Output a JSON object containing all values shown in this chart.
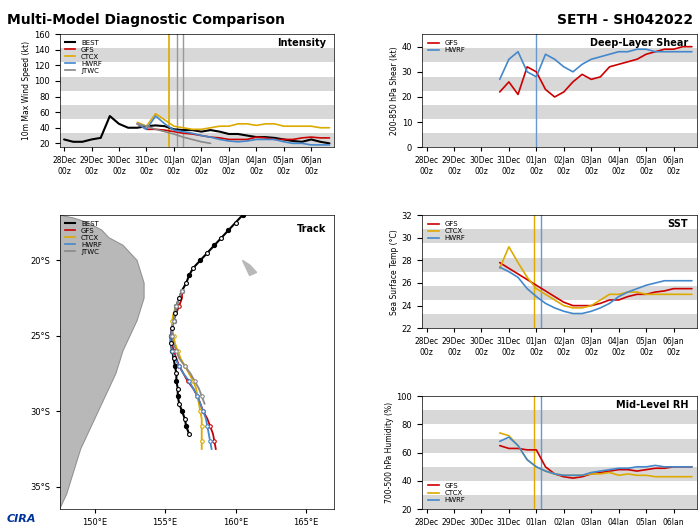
{
  "title_left": "Multi-Model Diagnostic Comparison",
  "title_right": "SETH - SH042022",
  "x_labels": [
    "28Dec\n00z",
    "29Dec\n00z",
    "30Dec\n00z",
    "31Dec\n00z",
    "01Jan\n00z",
    "02Jan\n00z",
    "03Jan\n00z",
    "04Jan\n00z",
    "05Jan\n00z",
    "06Jan\n00z"
  ],
  "intensity": {
    "label": "Intensity",
    "ylabel": "10m Max Wind Speed (kt)",
    "ylim": [
      15,
      160
    ],
    "yticks": [
      20,
      40,
      60,
      80,
      100,
      120,
      140,
      160
    ],
    "best": [
      25,
      22,
      22,
      25,
      27,
      55,
      45,
      40,
      40,
      42,
      43,
      42,
      38,
      37,
      37,
      35,
      37,
      35,
      32,
      32,
      30,
      28,
      28,
      27,
      25,
      23,
      22,
      25,
      22,
      20
    ],
    "gfs": [
      null,
      null,
      null,
      null,
      null,
      null,
      null,
      null,
      45,
      38,
      38,
      37,
      35,
      33,
      32,
      30,
      28,
      27,
      25,
      25,
      25,
      28,
      27,
      25,
      25,
      25,
      27,
      28,
      27,
      27
    ],
    "ctcx": [
      null,
      null,
      null,
      null,
      null,
      null,
      null,
      null,
      47,
      42,
      58,
      50,
      42,
      40,
      38,
      38,
      40,
      42,
      42,
      45,
      45,
      43,
      45,
      45,
      42,
      42,
      42,
      42,
      40,
      40
    ],
    "hwrf": [
      null,
      null,
      null,
      null,
      null,
      null,
      null,
      null,
      45,
      38,
      55,
      45,
      37,
      35,
      33,
      30,
      28,
      25,
      23,
      22,
      23,
      25,
      25,
      25,
      22,
      20,
      20,
      18,
      18,
      18
    ],
    "jtwc": [
      null,
      null,
      null,
      null,
      null,
      null,
      null,
      null,
      45,
      42,
      38,
      35,
      32,
      28,
      25,
      22,
      20,
      null,
      null,
      null,
      null,
      null,
      null,
      null,
      null,
      null,
      null,
      null,
      null,
      null
    ],
    "vline_ctcx_idx": 4,
    "vline_jtwc_idx": 4
  },
  "shear": {
    "label": "Deep-Layer Shear",
    "ylabel": "200-850 hPa Shear (kt)",
    "ylim": [
      0,
      45
    ],
    "yticks": [
      0,
      10,
      20,
      30,
      40
    ],
    "gfs": [
      null,
      null,
      null,
      null,
      null,
      null,
      null,
      null,
      22,
      26,
      21,
      32,
      30,
      23,
      20,
      22,
      26,
      29,
      27,
      28,
      32,
      33,
      34,
      35,
      37,
      38,
      39,
      39,
      40,
      40
    ],
    "hwrf": [
      null,
      null,
      null,
      null,
      null,
      null,
      null,
      null,
      27,
      35,
      38,
      30,
      28,
      37,
      35,
      32,
      30,
      33,
      35,
      36,
      37,
      38,
      38,
      39,
      39,
      38,
      38,
      38,
      38,
      38
    ],
    "vline_idx": 4
  },
  "sst": {
    "label": "SST",
    "ylabel": "Sea Surface Temp (°C)",
    "ylim": [
      22,
      32
    ],
    "yticks": [
      22,
      24,
      26,
      28,
      30,
      32
    ],
    "gfs": [
      null,
      null,
      null,
      null,
      null,
      null,
      null,
      null,
      27.8,
      27.3,
      26.8,
      26.3,
      25.8,
      25.3,
      24.8,
      24.3,
      24.0,
      24.0,
      24.0,
      24.2,
      24.5,
      24.5,
      24.8,
      25.0,
      25.0,
      25.2,
      25.3,
      25.5,
      25.5,
      25.5
    ],
    "ctcx": [
      null,
      null,
      null,
      null,
      null,
      null,
      null,
      null,
      27.3,
      29.2,
      27.8,
      26.5,
      25.5,
      25.0,
      24.5,
      24.0,
      23.8,
      23.8,
      24.0,
      24.5,
      25.0,
      25.0,
      25.2,
      25.2,
      25.0,
      25.0,
      25.0,
      25.0,
      25.0,
      25.0
    ],
    "hwrf": [
      null,
      null,
      null,
      null,
      null,
      null,
      null,
      null,
      27.4,
      27.0,
      26.5,
      25.5,
      24.8,
      24.2,
      23.8,
      23.5,
      23.3,
      23.3,
      23.5,
      23.8,
      24.2,
      24.8,
      25.2,
      25.5,
      25.8,
      26.0,
      26.2,
      26.2,
      26.2,
      26.2
    ],
    "vline_ctcx_idx": 4,
    "vline_blue_idx": 4
  },
  "rh": {
    "label": "Mid-Level RH",
    "ylabel": "700-500 hPa Humidity (%)",
    "ylim": [
      20,
      100
    ],
    "yticks": [
      20,
      40,
      60,
      80,
      100
    ],
    "gfs": [
      null,
      null,
      null,
      null,
      null,
      null,
      null,
      null,
      65,
      63,
      63,
      62,
      62,
      50,
      45,
      43,
      42,
      43,
      45,
      46,
      47,
      48,
      48,
      47,
      48,
      49,
      49,
      50,
      50,
      50
    ],
    "ctcx": [
      null,
      null,
      null,
      null,
      null,
      null,
      null,
      null,
      74,
      72,
      65,
      55,
      50,
      47,
      45,
      44,
      44,
      44,
      45,
      45,
      46,
      44,
      45,
      44,
      44,
      43,
      43,
      43,
      43,
      43
    ],
    "hwrf": [
      null,
      null,
      null,
      null,
      null,
      null,
      null,
      null,
      68,
      71,
      65,
      55,
      50,
      47,
      45,
      44,
      44,
      44,
      46,
      47,
      48,
      49,
      49,
      50,
      50,
      51,
      50,
      50,
      50,
      50
    ],
    "vline_ctcx_idx": 4,
    "vline_blue_idx": 4
  },
  "track": {
    "label": "Track",
    "best_lon": [
      160.5,
      160.0,
      159.5,
      159.0,
      158.5,
      158.0,
      157.5,
      157.0,
      156.7,
      156.5,
      156.2,
      156.0,
      155.8,
      155.7,
      155.6,
      155.5,
      155.4,
      155.4,
      155.5,
      155.6,
      155.7,
      155.8,
      155.8,
      155.9,
      155.9,
      156.0,
      156.2,
      156.4,
      156.5,
      156.7
    ],
    "best_lat": [
      -17.0,
      -17.5,
      -18.0,
      -18.5,
      -19.0,
      -19.5,
      -20.0,
      -20.5,
      -21.0,
      -21.5,
      -22.0,
      -22.5,
      -23.0,
      -23.5,
      -24.0,
      -24.5,
      -25.0,
      -25.5,
      -26.0,
      -26.5,
      -27.0,
      -27.5,
      -28.0,
      -28.5,
      -29.0,
      -29.5,
      -30.0,
      -30.5,
      -31.0,
      -31.5
    ],
    "gfs_lon": [
      156.2,
      156.2,
      156.0,
      155.8,
      155.6,
      155.5,
      155.4,
      155.5,
      155.6,
      155.8,
      156.0,
      156.3,
      156.6,
      157.0,
      157.3,
      157.5,
      157.7,
      158.0,
      158.2,
      158.4,
      158.5,
      158.6
    ],
    "gfs_lat": [
      -22.0,
      -22.5,
      -23.0,
      -23.5,
      -24.0,
      -24.5,
      -25.0,
      -25.5,
      -26.0,
      -26.5,
      -27.0,
      -27.5,
      -28.0,
      -28.5,
      -29.0,
      -29.5,
      -30.0,
      -30.5,
      -31.0,
      -31.5,
      -32.0,
      -32.5
    ],
    "ctcx_lon": [
      156.2,
      156.0,
      155.8,
      155.6,
      155.5,
      155.5,
      155.6,
      155.7,
      155.9,
      156.1,
      156.4,
      156.7,
      157.0,
      157.2,
      157.3,
      157.4,
      157.5,
      157.6,
      157.6,
      157.6,
      157.6,
      157.6
    ],
    "ctcx_lat": [
      -22.0,
      -22.5,
      -23.0,
      -23.5,
      -24.0,
      -24.5,
      -25.0,
      -25.5,
      -26.0,
      -26.5,
      -27.0,
      -27.5,
      -28.0,
      -28.5,
      -29.0,
      -29.5,
      -30.0,
      -30.5,
      -31.0,
      -31.5,
      -32.0,
      -32.5
    ],
    "hwrf_lon": [
      156.2,
      156.0,
      155.8,
      155.7,
      155.6,
      155.5,
      155.4,
      155.4,
      155.5,
      155.7,
      156.0,
      156.3,
      156.7,
      157.0,
      157.3,
      157.5,
      157.7,
      157.9,
      158.0,
      158.1,
      158.2,
      158.3
    ],
    "hwrf_lat": [
      -22.0,
      -22.5,
      -23.0,
      -23.5,
      -24.0,
      -24.5,
      -25.0,
      -25.5,
      -26.0,
      -26.5,
      -27.0,
      -27.5,
      -28.0,
      -28.5,
      -29.0,
      -29.5,
      -30.0,
      -30.5,
      -31.0,
      -31.5,
      -32.0,
      -32.5
    ],
    "jtwc_lon": [
      156.2,
      156.0,
      155.8,
      155.7,
      155.6,
      155.5,
      155.5,
      155.6,
      155.8,
      156.0,
      156.4,
      156.8,
      157.1,
      157.4,
      157.6,
      157.8
    ],
    "jtwc_lat": [
      -22.0,
      -22.5,
      -23.0,
      -23.5,
      -24.0,
      -24.5,
      -25.0,
      -25.5,
      -26.0,
      -26.5,
      -27.0,
      -27.5,
      -28.0,
      -28.5,
      -29.0,
      -29.5
    ],
    "xlim": [
      147.5,
      167
    ],
    "ylim": [
      -36.5,
      -17
    ],
    "xticks": [
      150,
      155,
      160,
      165
    ],
    "yticks": [
      -20,
      -25,
      -30,
      -35
    ]
  },
  "colors": {
    "best": "#000000",
    "gfs": "#cc0000",
    "ctcx": "#ddaa00",
    "hwrf": "#4488cc",
    "jtwc": "#888888",
    "vline_ctcx": "#ddaa00",
    "vline_blue": "#6699cc"
  }
}
